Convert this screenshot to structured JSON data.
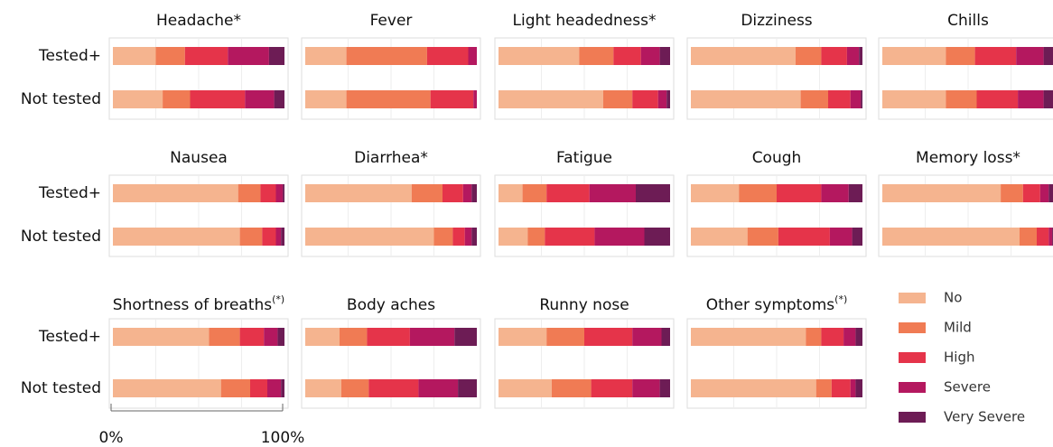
{
  "chart_data": {
    "type": "bar",
    "orientation": "horizontal",
    "stacked": true,
    "categories": [
      "Tested+",
      "Not tested"
    ],
    "series": [
      {
        "name": "No",
        "color": "#f5b48f"
      },
      {
        "name": "Mild",
        "color": "#f07b54"
      },
      {
        "name": "High",
        "color": "#e5344a"
      },
      {
        "name": "Severe",
        "color": "#b4185f"
      },
      {
        "name": "Very Severe",
        "color": "#6d1c55"
      }
    ],
    "xlim": [
      0,
      100
    ],
    "xticks": [
      {
        "value": 0,
        "label": "0%"
      },
      {
        "value": 100,
        "label": "100%"
      }
    ],
    "panels": [
      {
        "title": "Headache*",
        "values": [
          [
            25,
            17,
            25,
            24,
            9
          ],
          [
            29,
            16,
            32,
            17,
            6
          ]
        ]
      },
      {
        "title": "Fever",
        "values": [
          [
            24,
            47,
            24,
            5,
            0
          ],
          [
            24,
            49,
            25,
            2,
            0
          ]
        ]
      },
      {
        "title": "Light headedness*",
        "values": [
          [
            47,
            20,
            16,
            11,
            6
          ],
          [
            61,
            17,
            15,
            5,
            2
          ]
        ]
      },
      {
        "title": "Dizziness",
        "values": [
          [
            61,
            15,
            15,
            7,
            2
          ],
          [
            64,
            16,
            13,
            6,
            1
          ]
        ]
      },
      {
        "title": "Chills",
        "values": [
          [
            37,
            17,
            24,
            16,
            6
          ],
          [
            37,
            18,
            24,
            15,
            6
          ]
        ]
      },
      {
        "title": "Nausea",
        "values": [
          [
            73,
            13,
            9,
            4,
            1
          ],
          [
            74,
            13,
            8,
            3,
            2
          ]
        ]
      },
      {
        "title": "Diarrhea*",
        "values": [
          [
            62,
            18,
            12,
            5,
            3
          ],
          [
            75,
            11,
            7,
            4,
            3
          ]
        ]
      },
      {
        "title": "Fatigue",
        "values": [
          [
            14,
            14,
            25,
            27,
            20
          ],
          [
            17,
            10,
            29,
            29,
            15
          ]
        ]
      },
      {
        "title": "Cough",
        "values": [
          [
            28,
            22,
            26,
            16,
            8
          ],
          [
            33,
            18,
            30,
            13,
            6
          ]
        ]
      },
      {
        "title": "Memory loss*",
        "values": [
          [
            69,
            13,
            10,
            5,
            3
          ],
          [
            80,
            10,
            7,
            2,
            1
          ]
        ]
      },
      {
        "title": "Shortness of breaths",
        "title_mark": "(*)",
        "values": [
          [
            56,
            18,
            14,
            8,
            4
          ],
          [
            63,
            17,
            10,
            8,
            2
          ]
        ]
      },
      {
        "title": "Body aches",
        "values": [
          [
            20,
            16,
            25,
            26,
            13
          ],
          [
            21,
            16,
            29,
            23,
            11
          ]
        ]
      },
      {
        "title": "Runny nose",
        "values": [
          [
            28,
            22,
            28,
            17,
            5
          ],
          [
            31,
            23,
            24,
            16,
            6
          ]
        ]
      },
      {
        "title": "Other symptoms",
        "title_mark": "(*)",
        "values": [
          [
            67,
            9,
            13,
            7,
            4
          ],
          [
            73,
            9,
            11,
            3,
            4
          ]
        ]
      }
    ]
  }
}
